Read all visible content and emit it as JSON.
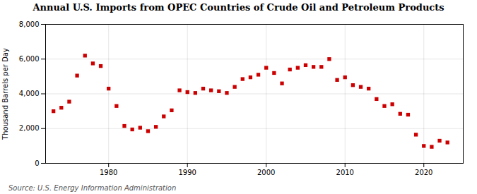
{
  "chart_data": {
    "type": "scatter",
    "title": "Annual U.S. Imports from OPEC Countries of Crude Oil and Petroleum Products",
    "ylabel": "Thousand Barrels per Day",
    "source": "Source: U.S. Energy Information Administration",
    "x": [
      1973,
      1974,
      1975,
      1976,
      1977,
      1978,
      1979,
      1980,
      1981,
      1982,
      1983,
      1984,
      1985,
      1986,
      1987,
      1988,
      1989,
      1990,
      1991,
      1992,
      1993,
      1994,
      1995,
      1996,
      1997,
      1998,
      1999,
      2000,
      2001,
      2002,
      2003,
      2004,
      2005,
      2006,
      2007,
      2008,
      2009,
      2010,
      2011,
      2012,
      2013,
      2014,
      2015,
      2016,
      2017,
      2018,
      2019,
      2020,
      2021,
      2022,
      2023
    ],
    "values": [
      3000,
      3200,
      3550,
      5050,
      6200,
      5750,
      5600,
      4300,
      3300,
      2150,
      1950,
      2050,
      1850,
      2100,
      2700,
      3050,
      4200,
      4100,
      4050,
      4300,
      4200,
      4150,
      4050,
      4400,
      4850,
      4950,
      5100,
      5500,
      5200,
      4600,
      5400,
      5500,
      5650,
      5550,
      5550,
      6000,
      4800,
      4950,
      4500,
      4400,
      4300,
      3700,
      3300,
      3400,
      2850,
      2800,
      1650,
      1000,
      950,
      1300,
      1200
    ],
    "color": "#cc0000",
    "marker": "square",
    "xlim": [
      1972,
      2025
    ],
    "xticks": [
      1980,
      1990,
      2000,
      2010,
      2020
    ],
    "ylim": [
      0,
      8000
    ],
    "yticks": [
      0,
      {
        "value": 2000,
        "label": "2,000"
      },
      {
        "value": 4000,
        "label": "4,000"
      },
      {
        "value": 6000,
        "label": "6,000"
      },
      {
        "value": 8000,
        "label": "8,000"
      }
    ],
    "grid": true
  }
}
